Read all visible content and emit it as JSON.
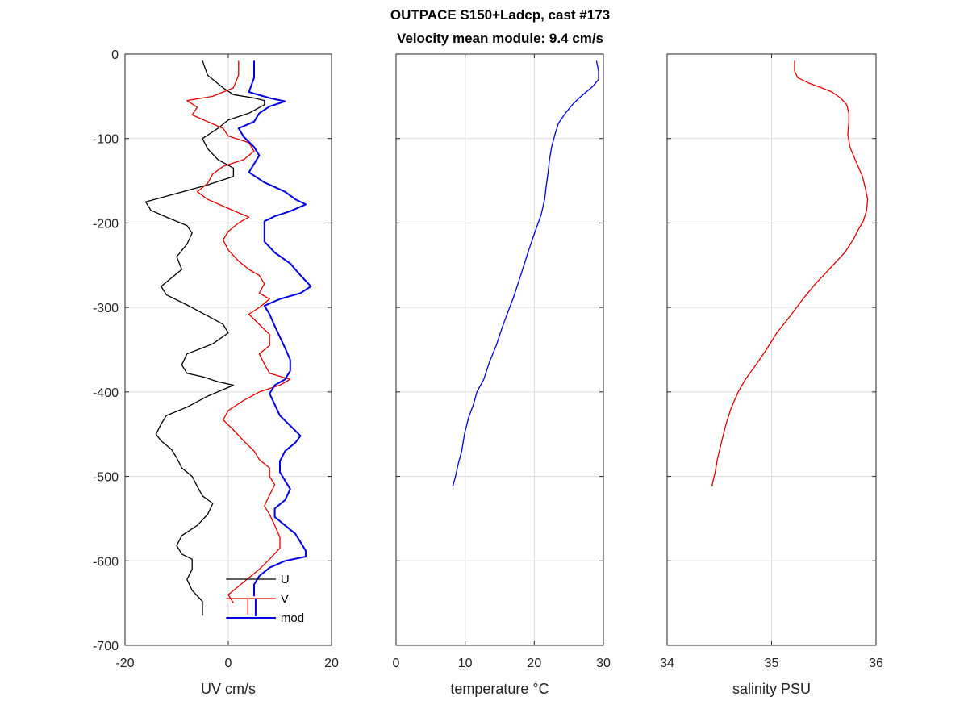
{
  "title_line1": "OUTPACE S150+Ladcp, cast #173",
  "title_line2": "Velocity mean module:  9.4 cm/s",
  "chart_data": [
    {
      "type": "line",
      "xlabel": "UV cm/s",
      "ylabel": "",
      "xlim": [
        -20,
        20
      ],
      "ylim": [
        -700,
        0
      ],
      "xticks": [
        -20,
        0,
        20
      ],
      "yticks": [
        0,
        -100,
        -200,
        -300,
        -400,
        -500,
        -600,
        -700
      ],
      "grid": true,
      "legend": "bottom-center",
      "series": [
        {
          "name": "U",
          "color": "#000000",
          "points": [
            [
              -5,
              -8
            ],
            [
              -4,
              -25
            ],
            [
              -1,
              -40
            ],
            [
              1,
              -48
            ],
            [
              5,
              -52
            ],
            [
              7,
              -55
            ],
            [
              7,
              -60
            ],
            [
              4,
              -70
            ],
            [
              0,
              -78
            ],
            [
              -2,
              -88
            ],
            [
              -5,
              -100
            ],
            [
              -4,
              -112
            ],
            [
              -2,
              -125
            ],
            [
              1,
              -135
            ],
            [
              1,
              -145
            ],
            [
              -4,
              -155
            ],
            [
              -10,
              -165
            ],
            [
              -16,
              -175
            ],
            [
              -15,
              -185
            ],
            [
              -12,
              -193
            ],
            [
              -8,
              -203
            ],
            [
              -7,
              -212
            ],
            [
              -8,
              -225
            ],
            [
              -10,
              -240
            ],
            [
              -9,
              -255
            ],
            [
              -13,
              -275
            ],
            [
              -12,
              -285
            ],
            [
              -8,
              -297
            ],
            [
              -4,
              -310
            ],
            [
              -1,
              -320
            ],
            [
              0,
              -330
            ],
            [
              -3,
              -343
            ],
            [
              -8,
              -355
            ],
            [
              -9,
              -368
            ],
            [
              -8,
              -378
            ],
            [
              -5,
              -382
            ],
            [
              -2,
              -388
            ],
            [
              1,
              -392
            ],
            [
              -4,
              -405
            ],
            [
              -8,
              -418
            ],
            [
              -12,
              -428
            ],
            [
              -13,
              -438
            ],
            [
              -14,
              -450
            ],
            [
              -13,
              -458
            ],
            [
              -11,
              -468
            ],
            [
              -10,
              -478
            ],
            [
              -9,
              -490
            ],
            [
              -7,
              -500
            ],
            [
              -6,
              -512
            ],
            [
              -5,
              -523
            ],
            [
              -3,
              -532
            ],
            [
              -4,
              -545
            ],
            [
              -6,
              -558
            ],
            [
              -9,
              -570
            ],
            [
              -10,
              -582
            ],
            [
              -9,
              -592
            ],
            [
              -7,
              -598
            ],
            [
              -7,
              -610
            ],
            [
              -8,
              -622
            ],
            [
              -7,
              -635
            ],
            [
              -5,
              -648
            ],
            [
              -5,
              -665
            ]
          ]
        },
        {
          "name": "V",
          "color": "#e00000",
          "points": [
            [
              2,
              -8
            ],
            [
              2,
              -25
            ],
            [
              1,
              -40
            ],
            [
              -3,
              -50
            ],
            [
              -8,
              -55
            ],
            [
              -6,
              -63
            ],
            [
              -7,
              -72
            ],
            [
              -4,
              -80
            ],
            [
              -1,
              -88
            ],
            [
              0,
              -97
            ],
            [
              4,
              -105
            ],
            [
              5,
              -115
            ],
            [
              3,
              -125
            ],
            [
              -1,
              -133
            ],
            [
              -3,
              -142
            ],
            [
              -4,
              -153
            ],
            [
              -6,
              -163
            ],
            [
              -4,
              -172
            ],
            [
              -1,
              -180
            ],
            [
              2,
              -188
            ],
            [
              4,
              -193
            ],
            [
              2,
              -200
            ],
            [
              0,
              -210
            ],
            [
              -1,
              -220
            ],
            [
              0,
              -232
            ],
            [
              2,
              -245
            ],
            [
              4,
              -255
            ],
            [
              6,
              -262
            ],
            [
              7,
              -272
            ],
            [
              6,
              -283
            ],
            [
              8,
              -290
            ],
            [
              6,
              -300
            ],
            [
              4,
              -308
            ],
            [
              6,
              -320
            ],
            [
              8,
              -332
            ],
            [
              8,
              -345
            ],
            [
              6,
              -355
            ],
            [
              7,
              -367
            ],
            [
              8,
              -378
            ],
            [
              12,
              -385
            ],
            [
              10,
              -392
            ],
            [
              6,
              -400
            ],
            [
              3,
              -410
            ],
            [
              0,
              -422
            ],
            [
              -1,
              -433
            ],
            [
              1,
              -445
            ],
            [
              3,
              -458
            ],
            [
              5,
              -470
            ],
            [
              6,
              -480
            ],
            [
              8,
              -490
            ],
            [
              8,
              -500
            ],
            [
              9,
              -510
            ],
            [
              8,
              -522
            ],
            [
              7,
              -535
            ],
            [
              8,
              -545
            ],
            [
              9,
              -558
            ],
            [
              10,
              -572
            ],
            [
              10,
              -585
            ],
            [
              8,
              -598
            ],
            [
              6,
              -610
            ],
            [
              4,
              -620
            ],
            [
              2,
              -630
            ],
            [
              0,
              -640
            ],
            [
              1,
              -650
            ]
          ]
        },
        {
          "name": "mod",
          "color": "#0000e0",
          "points": [
            [
              5,
              -8
            ],
            [
              5,
              -28
            ],
            [
              4,
              -45
            ],
            [
              8,
              -52
            ],
            [
              11,
              -56
            ],
            [
              8,
              -62
            ],
            [
              6,
              -70
            ],
            [
              5,
              -80
            ],
            [
              2,
              -88
            ],
            [
              3,
              -98
            ],
            [
              5,
              -110
            ],
            [
              6,
              -120
            ],
            [
              5,
              -130
            ],
            [
              4,
              -140
            ],
            [
              7,
              -152
            ],
            [
              11,
              -163
            ],
            [
              13,
              -172
            ],
            [
              15,
              -178
            ],
            [
              12,
              -186
            ],
            [
              9,
              -192
            ],
            [
              7,
              -198
            ],
            [
              7,
              -210
            ],
            [
              7,
              -222
            ],
            [
              9,
              -235
            ],
            [
              12,
              -248
            ],
            [
              14,
              -262
            ],
            [
              16,
              -275
            ],
            [
              14,
              -283
            ],
            [
              10,
              -290
            ],
            [
              7,
              -298
            ],
            [
              8,
              -308
            ],
            [
              9,
              -322
            ],
            [
              10,
              -335
            ],
            [
              11,
              -348
            ],
            [
              12,
              -362
            ],
            [
              12,
              -375
            ],
            [
              11,
              -385
            ],
            [
              9,
              -392
            ],
            [
              8,
              -402
            ],
            [
              9,
              -415
            ],
            [
              10,
              -428
            ],
            [
              12,
              -440
            ],
            [
              14,
              -452
            ],
            [
              13,
              -460
            ],
            [
              11,
              -470
            ],
            [
              10,
              -482
            ],
            [
              10,
              -495
            ],
            [
              11,
              -505
            ],
            [
              12,
              -515
            ],
            [
              11,
              -528
            ],
            [
              9,
              -538
            ],
            [
              9,
              -548
            ],
            [
              11,
              -558
            ],
            [
              13,
              -568
            ],
            [
              14,
              -578
            ],
            [
              15,
              -588
            ],
            [
              15,
              -595
            ],
            [
              11,
              -600
            ],
            [
              8,
              -608
            ],
            [
              6,
              -618
            ],
            [
              5,
              -628
            ],
            [
              5,
              -642
            ]
          ]
        }
      ]
    },
    {
      "type": "line",
      "xlabel": "temperature °C",
      "xlim": [
        0,
        30
      ],
      "ylim": [
        -700,
        0
      ],
      "xticks": [
        0,
        10,
        20,
        30
      ],
      "yticks": [
        0,
        -100,
        -200,
        -300,
        -400,
        -500,
        -600,
        -700
      ],
      "grid": true,
      "series": [
        {
          "color": "#0000e0",
          "points": [
            [
              29,
              -8
            ],
            [
              29.3,
              -20
            ],
            [
              29.3,
              -30
            ],
            [
              28.5,
              -38
            ],
            [
              27.5,
              -45
            ],
            [
              26.5,
              -52
            ],
            [
              25.5,
              -60
            ],
            [
              24.5,
              -70
            ],
            [
              23.5,
              -82
            ],
            [
              23,
              -95
            ],
            [
              22.5,
              -110
            ],
            [
              22.2,
              -125
            ],
            [
              22,
              -140
            ],
            [
              21.7,
              -158
            ],
            [
              21.5,
              -172
            ],
            [
              21,
              -190
            ],
            [
              20,
              -213
            ],
            [
              19.2,
              -232
            ],
            [
              18.5,
              -250
            ],
            [
              17.8,
              -268
            ],
            [
              17,
              -288
            ],
            [
              16.2,
              -305
            ],
            [
              15.3,
              -325
            ],
            [
              14.5,
              -345
            ],
            [
              13.5,
              -365
            ],
            [
              12.7,
              -385
            ],
            [
              11.7,
              -400
            ],
            [
              11.2,
              -415
            ],
            [
              10.5,
              -430
            ],
            [
              9.9,
              -450
            ],
            [
              9.5,
              -470
            ],
            [
              9,
              -485
            ],
            [
              8.6,
              -500
            ],
            [
              8.2,
              -512
            ]
          ]
        }
      ]
    },
    {
      "type": "line",
      "xlabel": "salinity PSU",
      "xlim": [
        34,
        36
      ],
      "ylim": [
        -700,
        0
      ],
      "xticks": [
        34,
        35,
        36
      ],
      "yticks": [
        0,
        -100,
        -200,
        -300,
        -400,
        -500,
        -600,
        -700
      ],
      "grid": true,
      "series": [
        {
          "color": "#e00000",
          "points": [
            [
              35.22,
              -8
            ],
            [
              35.22,
              -20
            ],
            [
              35.25,
              -28
            ],
            [
              35.35,
              -34
            ],
            [
              35.48,
              -40
            ],
            [
              35.58,
              -45
            ],
            [
              35.66,
              -52
            ],
            [
              35.72,
              -60
            ],
            [
              35.74,
              -70
            ],
            [
              35.74,
              -80
            ],
            [
              35.73,
              -95
            ],
            [
              35.75,
              -110
            ],
            [
              35.8,
              -125
            ],
            [
              35.87,
              -145
            ],
            [
              35.9,
              -160
            ],
            [
              35.92,
              -172
            ],
            [
              35.91,
              -185
            ],
            [
              35.88,
              -197
            ],
            [
              35.83,
              -208
            ],
            [
              35.78,
              -220
            ],
            [
              35.7,
              -235
            ],
            [
              35.55,
              -255
            ],
            [
              35.42,
              -272
            ],
            [
              35.3,
              -290
            ],
            [
              35.18,
              -310
            ],
            [
              35.05,
              -330
            ],
            [
              34.95,
              -350
            ],
            [
              34.85,
              -368
            ],
            [
              34.75,
              -385
            ],
            [
              34.68,
              -400
            ],
            [
              34.61,
              -420
            ],
            [
              34.56,
              -440
            ],
            [
              34.52,
              -460
            ],
            [
              34.48,
              -480
            ],
            [
              34.46,
              -495
            ],
            [
              34.44,
              -505
            ],
            [
              34.43,
              -512
            ]
          ]
        }
      ]
    }
  ]
}
